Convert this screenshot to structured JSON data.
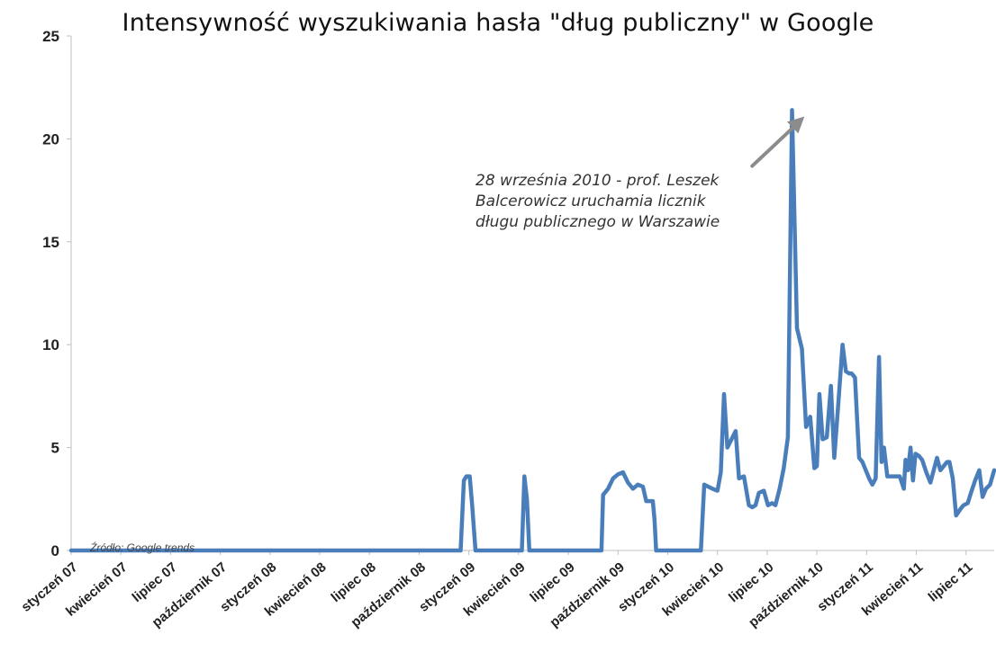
{
  "chart_data": {
    "type": "line",
    "title": "Intensywność wyszukiwania hasła \"dług publiczny\" w Google",
    "source_note": "Źródło: Google trends",
    "annotation": {
      "lines": [
        "28 września 2010 - prof. Leszek",
        "Balcerowicz uruchamia licznik",
        "długu publicznego w Warszawie"
      ],
      "points_to": {
        "x": 44.9,
        "y": 21
      }
    },
    "ylim": [
      0,
      25
    ],
    "yticks": [
      0,
      5,
      10,
      15,
      20,
      25
    ],
    "xlim": [
      0,
      55.7
    ],
    "xticks": [
      {
        "x": 0,
        "label": "styczeń 07"
      },
      {
        "x": 3,
        "label": "kwiecień 07"
      },
      {
        "x": 6,
        "label": "lipiec 07"
      },
      {
        "x": 9,
        "label": "październik 07"
      },
      {
        "x": 12,
        "label": "styczeń 08"
      },
      {
        "x": 15,
        "label": "kwiecień 08"
      },
      {
        "x": 18,
        "label": "lipiec 08"
      },
      {
        "x": 21,
        "label": "październik 08"
      },
      {
        "x": 24,
        "label": "styczeń 09"
      },
      {
        "x": 27,
        "label": "kwiecień 09"
      },
      {
        "x": 30,
        "label": "lipiec 09"
      },
      {
        "x": 33,
        "label": "październik 09"
      },
      {
        "x": 36,
        "label": "styczeń 10"
      },
      {
        "x": 39,
        "label": "kwiecień 10"
      },
      {
        "x": 42,
        "label": "lipiec 10"
      },
      {
        "x": 45,
        "label": "październik 10"
      },
      {
        "x": 48,
        "label": "styczeń 11"
      },
      {
        "x": 51,
        "label": "kwiecień 11"
      },
      {
        "x": 54,
        "label": "lipiec 11"
      }
    ],
    "grid": false,
    "legend": "none",
    "line_color": "#4a7ebb",
    "axis_color": "#bfbfbf",
    "series": [
      {
        "x": [
          0,
          23.5,
          23.7,
          23.85,
          24.05,
          24.2,
          24.4,
          27.2,
          27.35,
          27.5,
          27.65,
          32.0,
          32.1,
          32.4,
          32.7,
          33.0,
          33.3,
          33.6,
          33.9,
          34.2,
          34.5,
          34.7,
          35.1,
          35.2,
          35.3,
          38.0,
          38.2,
          38.45,
          38.7,
          39.0,
          39.2,
          39.4,
          39.6,
          40.1,
          40.3,
          40.6,
          40.9,
          41.1,
          41.3,
          41.5,
          41.8,
          42.05,
          42.3,
          42.5,
          42.75,
          43.0,
          43.25,
          43.5,
          43.8,
          44.1,
          44.35,
          44.6,
          44.85,
          45.0,
          45.15,
          45.35,
          45.6,
          45.85,
          46.05,
          46.3,
          46.55,
          46.75,
          46.95,
          47.1,
          47.3,
          47.55,
          47.75,
          47.95,
          48.15,
          48.35,
          48.55,
          48.75,
          48.9,
          49.05,
          49.25,
          49.5,
          49.75,
          50.0,
          50.25,
          50.35,
          50.5,
          50.65,
          50.8,
          50.95,
          51.15,
          51.35,
          51.6,
          51.85,
          52.05,
          52.25,
          52.45,
          52.65,
          52.85,
          53.0,
          53.2,
          53.4,
          53.65,
          53.85,
          54.1,
          54.3,
          54.55,
          54.8,
          55.0,
          55.2,
          55.45,
          55.7
        ],
        "y": [
          0,
          0,
          3.4,
          3.6,
          3.6,
          2.2,
          0,
          0,
          3.6,
          2.5,
          0,
          0,
          2.7,
          3.0,
          3.5,
          3.7,
          3.8,
          3.3,
          3.0,
          3.2,
          3.1,
          2.4,
          2.4,
          1.5,
          0,
          0,
          3.2,
          3.1,
          3.0,
          2.9,
          3.8,
          7.6,
          5.0,
          5.8,
          3.5,
          3.6,
          2.2,
          2.1,
          2.2,
          2.8,
          2.9,
          2.2,
          2.3,
          2.2,
          3.0,
          4.0,
          5.5,
          21.4,
          10.8,
          9.8,
          6.0,
          6.5,
          4.0,
          4.1,
          7.6,
          5.4,
          5.5,
          8.0,
          4.5,
          7.2,
          10.0,
          8.7,
          8.6,
          8.6,
          8.4,
          4.5,
          4.3,
          3.9,
          3.5,
          3.2,
          3.5,
          9.4,
          4.3,
          5.0,
          3.6,
          3.6,
          3.6,
          3.6,
          3.0,
          4.4,
          3.9,
          5.0,
          3.4,
          4.7,
          4.6,
          4.4,
          3.8,
          3.3,
          3.9,
          4.5,
          3.9,
          4.1,
          4.3,
          4.3,
          3.5,
          1.7,
          2.0,
          2.2,
          2.3,
          2.8,
          3.4,
          3.9,
          2.6,
          3.0,
          3.2,
          3.9
        ]
      }
    ]
  }
}
